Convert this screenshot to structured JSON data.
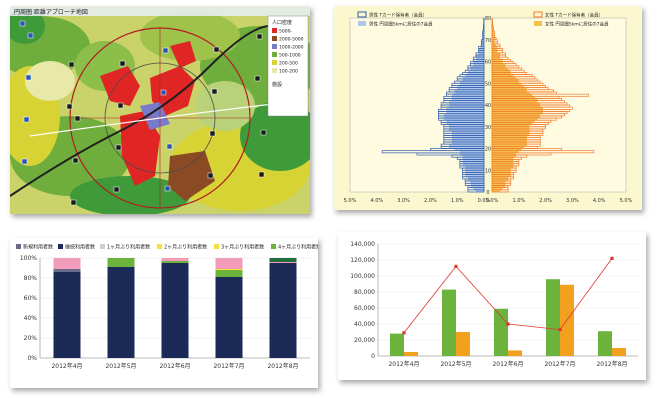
{
  "colors": {
    "navy": "#1c2a57",
    "green": "#6cb33e",
    "pink": "#f29bbb",
    "yellow": "#f2e33a",
    "lightblue": "#cde6f5",
    "map_red": "#e02525",
    "map_green": "#6fae3c",
    "map_yellow": "#d8d335",
    "bar_orange": "#f2a11f",
    "line_red": "#e0352b",
    "pyr_male": "#2e5cae",
    "pyr_female": "#f07a2c",
    "pyr_bg": "#fbf8cf"
  },
  "map": {
    "title": "円周圏 距離アプローチ地図",
    "legend_title": "人口密度",
    "legend_items": [
      "5000-",
      "2000-5000",
      "1000-2000",
      "500-1000",
      "200-500",
      "100-200"
    ],
    "legend_section2": "施設"
  },
  "chart_data": [
    {
      "type": "bar",
      "subtype": "population-pyramid",
      "x_left_ticks": [
        "5.0%",
        "4.0%",
        "3.0%",
        "2.0%",
        "1.0%",
        "0.0%"
      ],
      "x_right_ticks": [
        "0.0%",
        "1.0%",
        "2.0%",
        "3.0%",
        "4.0%",
        "5.0%"
      ],
      "y_ticks": [
        0,
        10,
        20,
        30,
        40,
        50,
        60,
        70,
        80
      ],
      "ylim": [
        0,
        80
      ],
      "legend": {
        "male_line": "男性 Tカード保有者（会員）",
        "male_fill": "男性 円周圏5kmに居住の7会員",
        "female_line": "女性 Tカード保有者（会員）",
        "female_fill": "女性 円周圏5kmに居住の7会員"
      },
      "male_fill": [
        0.3,
        0.4,
        0.5,
        0.5,
        0.5,
        0.6,
        0.6,
        0.7,
        0.7,
        0.7,
        0.7,
        0.7,
        0.8,
        0.8,
        0.8,
        0.8,
        0.8,
        0.9,
        0.9,
        1.1,
        1.3,
        1.3,
        1.2,
        1.2,
        1.2,
        1.2,
        1.2,
        1.2,
        1.3,
        1.3,
        1.3,
        1.4,
        1.4,
        1.5,
        1.5,
        1.5,
        1.4,
        1.4,
        1.4,
        1.3,
        1.3,
        1.3,
        1.2,
        1.2,
        1.2,
        1.1,
        1.1,
        1.0,
        1.0,
        0.9,
        0.9,
        0.8,
        0.8,
        0.7,
        0.6,
        0.6,
        0.5,
        0.5,
        0.4,
        0.4,
        0.3,
        0.3,
        0.3,
        0.2,
        0.2,
        0.2,
        0.15,
        0.1,
        0.1,
        0.1,
        0.05,
        0.05,
        0.05,
        0.05,
        0.02,
        0.02,
        0.02,
        0.01,
        0.01,
        0.01
      ],
      "male_line": [
        0.6,
        0.6,
        0.6,
        0.7,
        0.7,
        0.7,
        0.8,
        0.8,
        0.8,
        0.8,
        0.8,
        0.9,
        0.9,
        0.9,
        0.9,
        1.0,
        1.2,
        2.5,
        3.8,
        2.0,
        1.6,
        1.6,
        1.5,
        1.5,
        1.5,
        1.5,
        1.5,
        1.5,
        1.5,
        1.5,
        1.5,
        1.6,
        1.6,
        1.7,
        1.7,
        1.7,
        1.7,
        1.7,
        1.6,
        1.6,
        1.6,
        1.5,
        1.5,
        1.5,
        1.4,
        1.4,
        1.3,
        1.3,
        1.2,
        1.2,
        1.1,
        1.0,
        1.0,
        0.9,
        0.8,
        0.7,
        0.6,
        0.6,
        0.5,
        0.5,
        0.4,
        0.4,
        0.3,
        0.3,
        0.2,
        0.2,
        0.2,
        0.1,
        0.1,
        0.1,
        0.05,
        0.05,
        0.05,
        0.05,
        0.03,
        0.02,
        0.02,
        0.01,
        0.01,
        0.01
      ],
      "female_fill": [
        0.3,
        0.4,
        0.5,
        0.5,
        0.5,
        0.6,
        0.6,
        0.7,
        0.7,
        0.7,
        0.7,
        0.8,
        0.8,
        0.8,
        0.8,
        0.8,
        0.9,
        0.9,
        1.0,
        1.1,
        1.2,
        1.3,
        1.3,
        1.3,
        1.3,
        1.3,
        1.4,
        1.4,
        1.4,
        1.4,
        1.4,
        1.5,
        1.6,
        1.7,
        1.8,
        1.8,
        1.9,
        1.9,
        1.9,
        1.8,
        1.8,
        1.7,
        1.7,
        1.6,
        1.5,
        1.4,
        1.3,
        1.3,
        1.2,
        1.1,
        1.0,
        1.0,
        0.9,
        0.8,
        0.7,
        0.7,
        0.6,
        0.5,
        0.5,
        0.4,
        0.4,
        0.3,
        0.3,
        0.3,
        0.2,
        0.2,
        0.2,
        0.15,
        0.1,
        0.1,
        0.1,
        0.05,
        0.05,
        0.05,
        0.05,
        0.03,
        0.02,
        0.02,
        0.01,
        0.01
      ],
      "female_line": [
        0.6,
        0.6,
        0.6,
        0.7,
        0.7,
        0.7,
        0.8,
        0.8,
        0.8,
        0.9,
        0.9,
        0.9,
        1.0,
        1.0,
        1.0,
        1.1,
        1.3,
        2.2,
        3.8,
        2.6,
        1.7,
        1.8,
        1.8,
        1.8,
        1.8,
        1.8,
        1.9,
        1.9,
        1.9,
        2.0,
        2.0,
        2.1,
        2.2,
        2.4,
        2.6,
        2.7,
        2.8,
        2.9,
        3.0,
        2.9,
        2.8,
        2.7,
        2.6,
        2.5,
        3.6,
        2.4,
        2.3,
        2.1,
        2.0,
        1.9,
        1.8,
        1.7,
        1.6,
        1.5,
        1.3,
        1.2,
        1.1,
        1.0,
        0.9,
        0.8,
        0.7,
        0.6,
        0.5,
        0.5,
        0.4,
        0.4,
        0.3,
        0.3,
        0.2,
        0.2,
        0.15,
        0.1,
        0.1,
        0.1,
        0.05,
        0.05,
        0.03,
        0.02,
        0.02,
        0.01
      ]
    },
    {
      "type": "bar",
      "subtype": "stacked-100",
      "legend": [
        "新規利用者数",
        "継続利用者数",
        "1ヶ月ぶり利用者数",
        "2ヶ月ぶり利用者数",
        "3ヶ月ぶり利用者数",
        "4ヶ月ぶり利用者数"
      ],
      "categories": [
        "2012年4月",
        "2012年5月",
        "2012年6月",
        "2012年7月",
        "2012年8月"
      ],
      "y_ticks": [
        "0%",
        "20%",
        "40%",
        "60%",
        "80%",
        "100%"
      ],
      "ylim": [
        0,
        100
      ],
      "series": [
        {
          "name": "継続利用者数",
          "values": [
            86,
            91,
            95,
            81,
            95
          ]
        },
        {
          "name": "新規利用者数",
          "values": [
            3,
            0,
            0,
            0,
            0
          ]
        },
        {
          "name": "2ヶ月ぶり利用者数",
          "values": [
            0,
            9,
            2,
            7,
            0
          ]
        },
        {
          "name": "3ヶ月ぶり利用者数",
          "values": [
            0,
            0,
            0,
            1,
            0
          ]
        },
        {
          "name": "1ヶ月ぶり利用者数",
          "values": [
            11,
            0,
            3,
            11,
            1
          ]
        },
        {
          "name": "4ヶ月ぶり利用者数",
          "values": [
            0,
            0,
            0,
            0,
            4
          ]
        }
      ]
    },
    {
      "type": "bar",
      "subtype": "combo-bar-line",
      "categories": [
        "2012年4月",
        "2012年5月",
        "2012年6月",
        "2012年7月",
        "2012年8月"
      ],
      "y_ticks": [
        "0",
        "20,000",
        "40,000",
        "60,000",
        "80,000",
        "100,000",
        "120,000",
        "140,000"
      ],
      "ylim": [
        0,
        140000
      ],
      "series": [
        {
          "type": "bar",
          "values": [
            28000,
            83000,
            59000,
            96000,
            31000
          ]
        },
        {
          "type": "bar",
          "values": [
            5000,
            30000,
            7000,
            89000,
            10000
          ]
        },
        {
          "type": "line",
          "values": [
            29000,
            112000,
            40000,
            33000,
            122000
          ]
        }
      ]
    }
  ]
}
